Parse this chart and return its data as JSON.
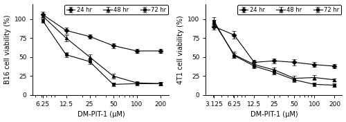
{
  "left": {
    "xlabel": "DM-PIT-1 (μM)",
    "ylabel": "B16 cell viability (%)",
    "xticklabels": [
      "6.25",
      "12.5",
      "25",
      "50",
      "100",
      "200"
    ],
    "x": [
      6.25,
      12.5,
      25,
      50,
      100,
      200
    ],
    "series": {
      "24 hr": {
        "y": [
          106,
          85,
          77,
          65,
          58,
          58
        ],
        "yerr": [
          4,
          4,
          3,
          3,
          3,
          3
        ],
        "marker": "D",
        "linestyle": "-"
      },
      "48 hr": {
        "y": [
          104,
          75,
          50,
          25,
          16,
          15
        ],
        "yerr": [
          3,
          4,
          3,
          3,
          2,
          2
        ],
        "marker": "^",
        "linestyle": "-"
      },
      "72 hr": {
        "y": [
          98,
          53,
          44,
          14,
          15,
          15
        ],
        "yerr": [
          3,
          3,
          3,
          2,
          2,
          2
        ],
        "marker": "s",
        "linestyle": "-"
      }
    },
    "ylim": [
      0,
      120
    ],
    "yticks": [
      0,
      25,
      50,
      75,
      100
    ]
  },
  "right": {
    "xlabel": "DM-PIT-1 (μM)",
    "ylabel": "4T1 cell viability (%)",
    "xticklabels": [
      "3.125",
      "6.25",
      "12.5",
      "25",
      "50",
      "100",
      "200"
    ],
    "x": [
      3.125,
      6.25,
      12.5,
      25,
      50,
      100,
      200
    ],
    "series": {
      "24 hr": {
        "y": [
          90,
          79,
          43,
          45,
          43,
          40,
          38
        ],
        "yerr": [
          4,
          5,
          3,
          3,
          4,
          3,
          3
        ],
        "marker": "D",
        "linestyle": "-"
      },
      "48 hr": {
        "y": [
          95,
          53,
          40,
          33,
          22,
          23,
          20
        ],
        "yerr": [
          4,
          4,
          3,
          3,
          3,
          3,
          2
        ],
        "marker": "^",
        "linestyle": "-"
      },
      "72 hr": {
        "y": [
          97,
          52,
          38,
          30,
          20,
          14,
          13
        ],
        "yerr": [
          5,
          3,
          3,
          3,
          3,
          2,
          2
        ],
        "marker": "s",
        "linestyle": "-"
      }
    },
    "ylim": [
      0,
      120
    ],
    "yticks": [
      0,
      25,
      50,
      75,
      100
    ]
  },
  "line_color": "#000000",
  "marker_size": 3.5,
  "capsize": 2,
  "fontsize": 7,
  "legend_fontsize": 6,
  "tick_fontsize": 6.5
}
